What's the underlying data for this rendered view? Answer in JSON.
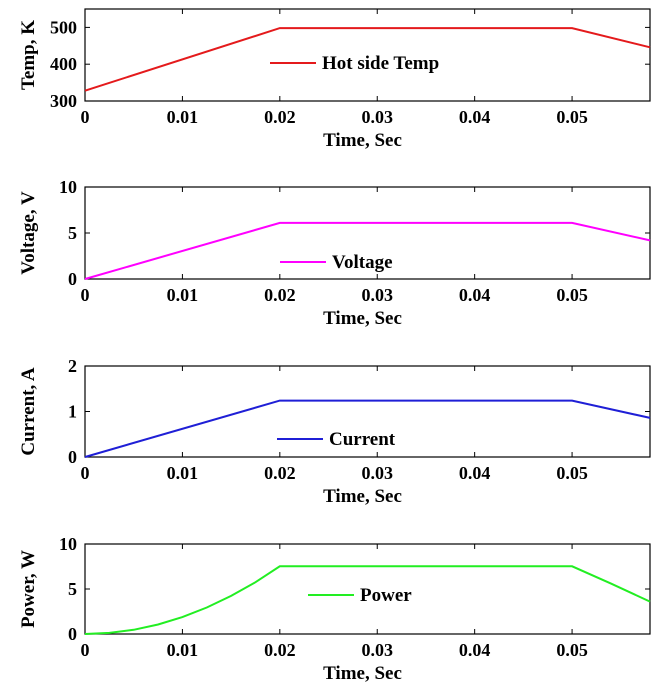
{
  "chart_data": [
    {
      "type": "line",
      "ylabel": "Temp, K",
      "xlabel": "Time, Sec",
      "xlim": [
        0,
        0.058
      ],
      "ylim": [
        300,
        550
      ],
      "xticks": [
        "0",
        "0.01",
        "0.02",
        "0.03",
        "0.04",
        "0.05"
      ],
      "yticks": [
        "300",
        "400",
        "500"
      ],
      "grid": false,
      "legend_position": "center",
      "series": [
        {
          "name": "Hot side Temp",
          "color": "#e41a1c",
          "x": [
            0,
            0.02,
            0.05,
            0.058
          ],
          "y": [
            328,
            498,
            498,
            446
          ]
        }
      ]
    },
    {
      "type": "line",
      "ylabel": "Voltage, V",
      "xlabel": "Time, Sec",
      "xlim": [
        0,
        0.058
      ],
      "ylim": [
        0,
        10
      ],
      "xticks": [
        "0",
        "0.01",
        "0.02",
        "0.03",
        "0.04",
        "0.05"
      ],
      "yticks": [
        "0",
        "5",
        "10"
      ],
      "grid": false,
      "legend_position": "lower-center",
      "series": [
        {
          "name": "Voltage",
          "color": "#ff00ff",
          "x": [
            0,
            0.02,
            0.05,
            0.058
          ],
          "y": [
            0,
            6.1,
            6.1,
            4.2
          ]
        }
      ]
    },
    {
      "type": "line",
      "ylabel": "Current, A",
      "xlabel": "Time, Sec",
      "xlim": [
        0,
        0.058
      ],
      "ylim": [
        0,
        2
      ],
      "xticks": [
        "0",
        "0.01",
        "0.02",
        "0.03",
        "0.04",
        "0.05"
      ],
      "yticks": [
        "0",
        "1",
        "2"
      ],
      "grid": false,
      "legend_position": "lower-center",
      "series": [
        {
          "name": "Current",
          "color": "#1f1fd6",
          "x": [
            0,
            0.02,
            0.05,
            0.058
          ],
          "y": [
            0,
            1.24,
            1.24,
            0.86
          ]
        }
      ]
    },
    {
      "type": "line",
      "ylabel": "Power, W",
      "xlabel": "Time, Sec",
      "xlim": [
        0,
        0.058
      ],
      "ylim": [
        0,
        10
      ],
      "xticks": [
        "0",
        "0.01",
        "0.02",
        "0.03",
        "0.04",
        "0.05"
      ],
      "yticks": [
        "0",
        "5",
        "10"
      ],
      "grid": false,
      "legend_position": "center",
      "series": [
        {
          "name": "Power",
          "color": "#22ee22",
          "x": [
            0,
            0.0025,
            0.005,
            0.0075,
            0.01,
            0.0125,
            0.015,
            0.0175,
            0.02,
            0.05,
            0.054,
            0.058
          ],
          "y": [
            0,
            0.12,
            0.47,
            1.06,
            1.88,
            2.94,
            4.23,
            5.76,
            7.52,
            7.52,
            5.6,
            3.6
          ]
        }
      ]
    }
  ]
}
